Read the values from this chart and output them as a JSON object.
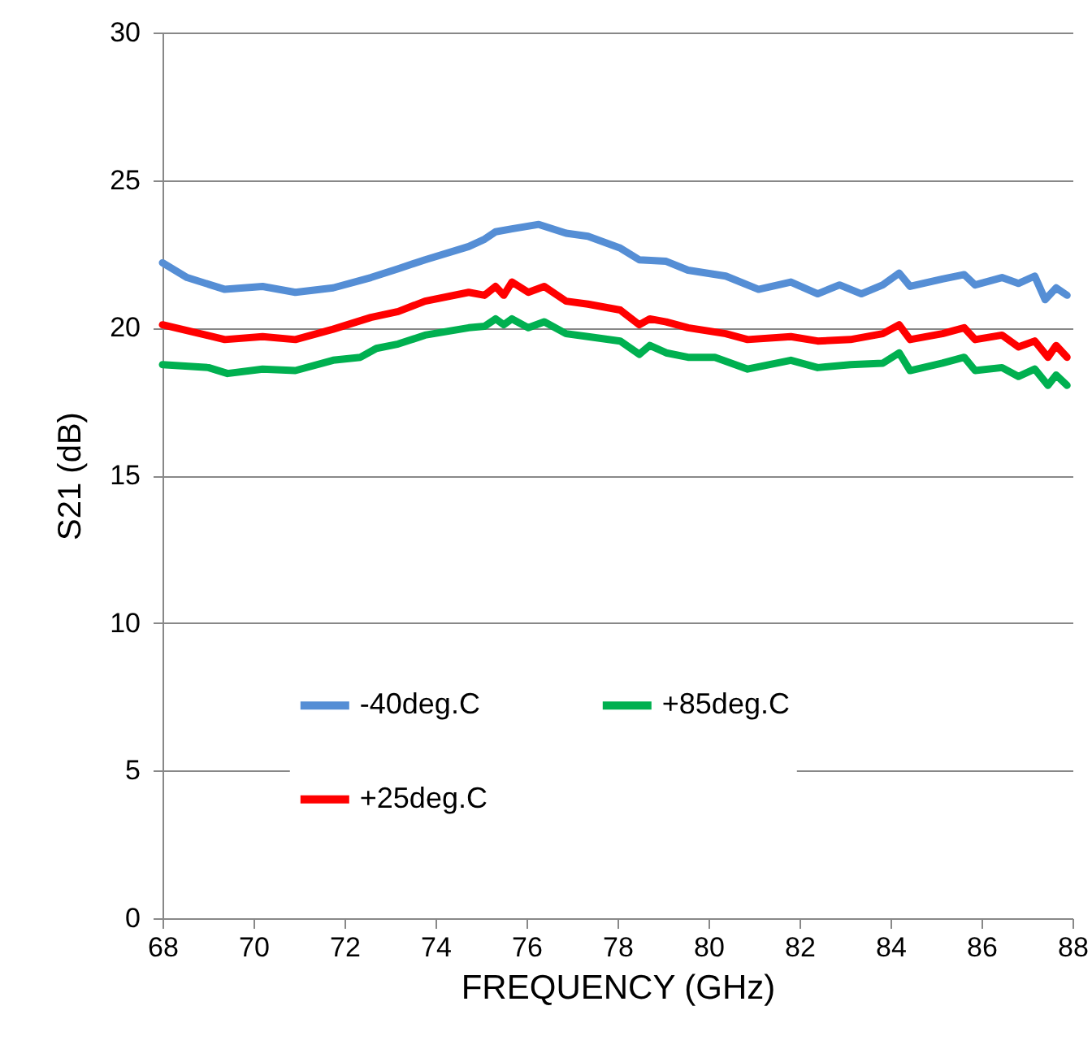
{
  "chart_data": {
    "type": "line",
    "xlabel": "FREQUENCY (GHz)",
    "ylabel": "S21 (dB)",
    "xlim": [
      68,
      88
    ],
    "xticks": [
      68,
      70,
      72,
      74,
      76,
      78,
      80,
      82,
      84,
      86,
      88
    ],
    "ylim": [
      0,
      30
    ],
    "yticks": [
      0,
      5,
      10,
      15,
      20,
      25,
      30
    ],
    "grid": "y",
    "legend": "bottom",
    "marker": "none",
    "line_style": "solid",
    "series": [
      {
        "name": "-40deg.C",
        "color": "#558ed5",
        "x": [
          68,
          68.54,
          69.37,
          70.2,
          70.92,
          71.75,
          72.58,
          73.18,
          73.77,
          74.73,
          75.08,
          75.32,
          75.68,
          76.27,
          76.87,
          77.35,
          78.06,
          78.48,
          79.07,
          79.55,
          80.38,
          81.1,
          81.81,
          82.4,
          82.88,
          83.36,
          83.83,
          84.19,
          84.43,
          85.14,
          85.62,
          85.86,
          86.45,
          86.81,
          87.17,
          87.4,
          87.64,
          87.88
        ],
        "values": [
          22.2,
          21.7,
          21.3,
          21.4,
          21.2,
          21.35,
          21.7,
          22.0,
          22.3,
          22.75,
          23.0,
          23.25,
          23.35,
          23.5,
          23.2,
          23.1,
          22.7,
          22.3,
          22.25,
          21.95,
          21.75,
          21.3,
          21.55,
          21.15,
          21.45,
          21.15,
          21.45,
          21.85,
          21.4,
          21.65,
          21.8,
          21.45,
          21.7,
          21.5,
          21.75,
          20.95,
          21.35,
          21.1
        ]
      },
      {
        "name": "+25deg.C",
        "color": "#ff0000",
        "x": [
          68,
          69.37,
          70.2,
          70.92,
          71.75,
          72.58,
          73.18,
          73.77,
          74.73,
          75.08,
          75.32,
          75.5,
          75.68,
          76.04,
          76.39,
          76.87,
          77.35,
          78.06,
          78.48,
          78.71,
          79.07,
          79.55,
          80.38,
          80.86,
          81.81,
          82.4,
          83.12,
          83.83,
          84.19,
          84.43,
          85.14,
          85.62,
          85.86,
          86.45,
          86.81,
          87.17,
          87.46,
          87.64,
          87.88
        ],
        "values": [
          20.1,
          19.6,
          19.7,
          19.6,
          19.95,
          20.35,
          20.55,
          20.9,
          21.2,
          21.1,
          21.4,
          21.1,
          21.55,
          21.2,
          21.4,
          20.9,
          20.8,
          20.6,
          20.1,
          20.3,
          20.2,
          20.0,
          19.8,
          19.6,
          19.7,
          19.55,
          19.6,
          19.8,
          20.1,
          19.6,
          19.8,
          20.0,
          19.6,
          19.75,
          19.35,
          19.55,
          19.0,
          19.4,
          19.0
        ]
      },
      {
        "name": "+85deg.C",
        "color": "#00b050",
        "x": [
          68,
          69.01,
          69.43,
          70.2,
          70.92,
          71.75,
          72.35,
          72.7,
          73.18,
          73.77,
          74.73,
          75.08,
          75.32,
          75.5,
          75.68,
          76.04,
          76.39,
          76.87,
          77.35,
          78.06,
          78.48,
          78.71,
          79.07,
          79.55,
          80.14,
          80.86,
          81.81,
          82.4,
          83.12,
          83.83,
          84.19,
          84.43,
          85.14,
          85.62,
          85.86,
          86.45,
          86.81,
          87.17,
          87.46,
          87.64,
          87.88
        ],
        "values": [
          18.75,
          18.65,
          18.45,
          18.6,
          18.55,
          18.9,
          19.0,
          19.3,
          19.45,
          19.75,
          20.0,
          20.05,
          20.3,
          20.1,
          20.3,
          20.0,
          20.2,
          19.8,
          19.7,
          19.55,
          19.1,
          19.4,
          19.15,
          19.0,
          19.0,
          18.6,
          18.9,
          18.65,
          18.75,
          18.8,
          19.15,
          18.55,
          18.8,
          19.0,
          18.55,
          18.65,
          18.35,
          18.6,
          18.05,
          18.4,
          18.05
        ]
      }
    ]
  }
}
